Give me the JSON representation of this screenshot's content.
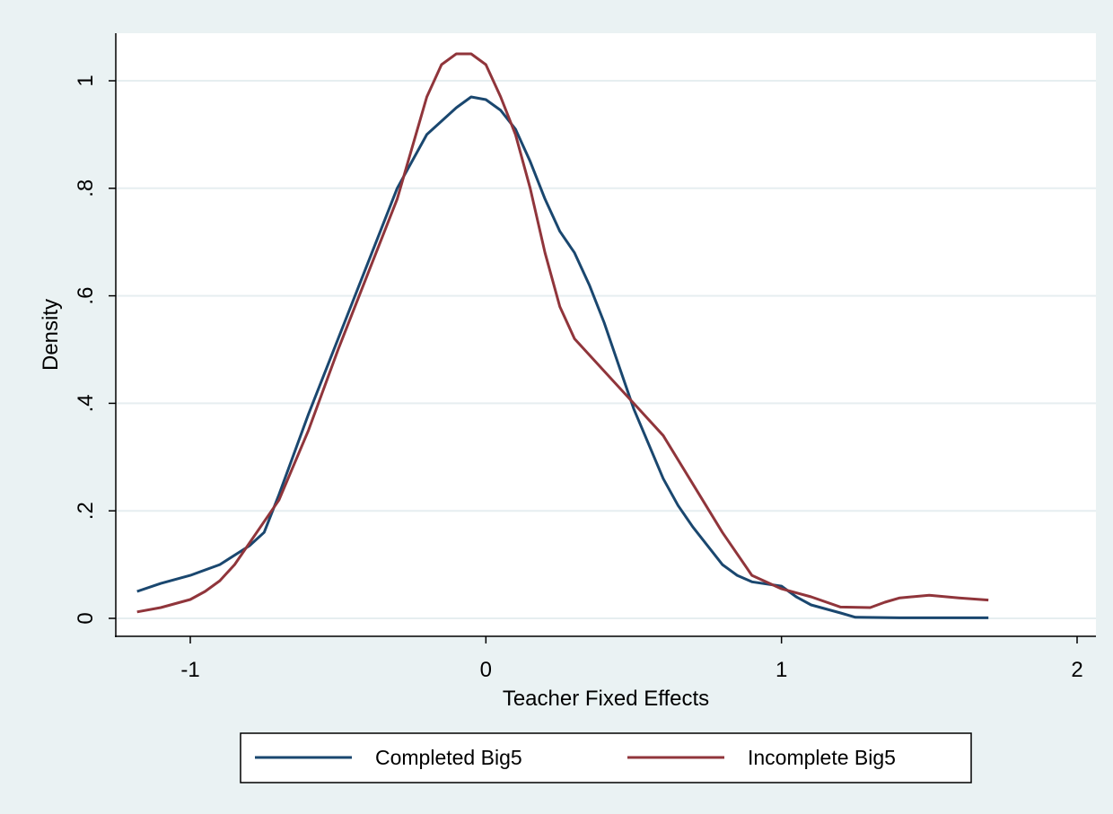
{
  "chart_data": {
    "type": "line",
    "title": "",
    "xlabel": "Teacher Fixed Effects",
    "ylabel": "Density",
    "xlim": [
      -1.25,
      2.0
    ],
    "ylim": [
      0,
      1.08
    ],
    "x_ticks": [
      -1,
      0,
      1,
      2
    ],
    "x_tick_labels": [
      "-1",
      "0",
      "1",
      "2"
    ],
    "y_ticks": [
      0,
      0.2,
      0.4,
      0.6,
      0.8,
      1.0
    ],
    "y_tick_labels": [
      "0",
      ".2",
      ".4",
      ".6",
      ".8",
      "1"
    ],
    "grid": "horizontal",
    "legend_position": "bottom",
    "series": [
      {
        "name": "Completed Big5",
        "color": "#1a476f",
        "x": [
          -1.18,
          -1.1,
          -1.0,
          -0.9,
          -0.8,
          -0.75,
          -0.7,
          -0.6,
          -0.5,
          -0.4,
          -0.3,
          -0.2,
          -0.1,
          -0.05,
          0.0,
          0.05,
          0.1,
          0.15,
          0.2,
          0.25,
          0.3,
          0.35,
          0.4,
          0.45,
          0.5,
          0.6,
          0.65,
          0.7,
          0.8,
          0.85,
          0.9,
          1.0,
          1.05,
          1.1,
          1.2,
          1.25,
          1.4,
          1.6,
          1.7
        ],
        "y": [
          0.05,
          0.065,
          0.08,
          0.1,
          0.135,
          0.16,
          0.23,
          0.38,
          0.52,
          0.66,
          0.8,
          0.9,
          0.95,
          0.97,
          0.965,
          0.945,
          0.91,
          0.85,
          0.78,
          0.72,
          0.68,
          0.62,
          0.55,
          0.47,
          0.39,
          0.26,
          0.21,
          0.17,
          0.1,
          0.08,
          0.068,
          0.06,
          0.04,
          0.025,
          0.01,
          0.002,
          0.001,
          0.001,
          0.001
        ]
      },
      {
        "name": "Incomplete Big5",
        "color": "#90353b",
        "x": [
          -1.18,
          -1.1,
          -1.0,
          -0.95,
          -0.9,
          -0.85,
          -0.8,
          -0.75,
          -0.7,
          -0.6,
          -0.5,
          -0.4,
          -0.3,
          -0.2,
          -0.15,
          -0.1,
          -0.05,
          0.0,
          0.05,
          0.1,
          0.15,
          0.2,
          0.25,
          0.3,
          0.35,
          0.4,
          0.5,
          0.6,
          0.7,
          0.8,
          0.9,
          1.0,
          1.1,
          1.2,
          1.3,
          1.35,
          1.4,
          1.5,
          1.6,
          1.7
        ],
        "y": [
          0.012,
          0.02,
          0.035,
          0.05,
          0.07,
          0.1,
          0.14,
          0.18,
          0.22,
          0.35,
          0.5,
          0.64,
          0.78,
          0.97,
          1.03,
          1.05,
          1.05,
          1.03,
          0.97,
          0.9,
          0.8,
          0.68,
          0.58,
          0.52,
          0.49,
          0.46,
          0.4,
          0.34,
          0.25,
          0.16,
          0.08,
          0.055,
          0.04,
          0.021,
          0.02,
          0.03,
          0.038,
          0.043,
          0.038,
          0.034
        ]
      }
    ]
  }
}
